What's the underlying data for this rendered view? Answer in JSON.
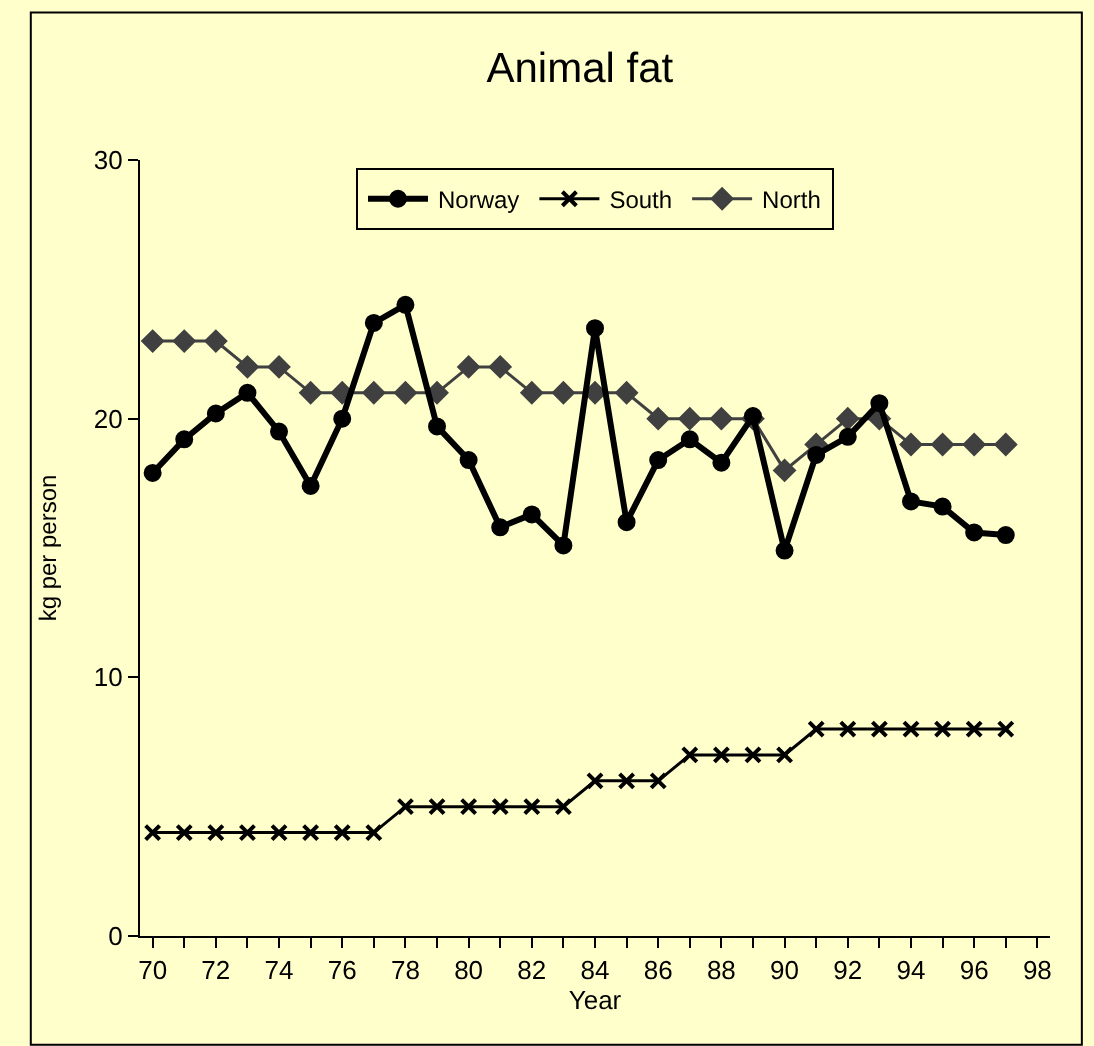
{
  "chart_data": {
    "type": "line",
    "title": "Animal fat",
    "xlabel": "Year",
    "ylabel": "kg per person",
    "x": [
      70,
      71,
      72,
      73,
      74,
      75,
      76,
      77,
      78,
      79,
      80,
      81,
      82,
      83,
      84,
      85,
      86,
      87,
      88,
      89,
      90,
      91,
      92,
      93,
      94,
      95,
      96,
      97
    ],
    "series": [
      {
        "name": "Norway",
        "color": "#000000",
        "marker": "circle",
        "values": [
          17.9,
          19.2,
          20.2,
          21.0,
          19.5,
          17.4,
          20.0,
          23.7,
          24.4,
          19.7,
          18.4,
          15.8,
          16.3,
          15.1,
          23.5,
          16.0,
          18.4,
          19.2,
          18.3,
          20.1,
          14.9,
          18.6,
          19.3,
          20.6,
          16.8,
          16.6,
          15.6,
          15.5
        ]
      },
      {
        "name": "South",
        "color": "#000000",
        "marker": "cross",
        "values": [
          4,
          4,
          4,
          4,
          4,
          4,
          4,
          4,
          5,
          5,
          5,
          5,
          5,
          5,
          6,
          6,
          6,
          7,
          7,
          7,
          7,
          8,
          8,
          8,
          8,
          8,
          8,
          8
        ]
      },
      {
        "name": "North",
        "color": "#404040",
        "marker": "diamond",
        "values": [
          23,
          23,
          23,
          22,
          22,
          21,
          21,
          21,
          21,
          21,
          22,
          22,
          21,
          21,
          21,
          21,
          20,
          20,
          20,
          20,
          18,
          19,
          20,
          20,
          19,
          19,
          19,
          19
        ]
      }
    ],
    "xlim": [
      69.6,
      98.4
    ],
    "xticks": [
      70,
      {
        "value": 71,
        "label": null
      },
      72,
      {
        "value": 73,
        "label": null
      },
      74,
      {
        "value": 75,
        "label": null
      },
      76,
      {
        "value": 77,
        "label": null
      },
      78,
      {
        "value": 79,
        "label": null
      },
      80,
      {
        "value": 81,
        "label": null
      },
      82,
      {
        "value": 83,
        "label": null
      },
      84,
      {
        "value": 85,
        "label": null
      },
      86,
      {
        "value": 87,
        "label": null
      },
      88,
      {
        "value": 89,
        "label": null
      },
      90,
      {
        "value": 91,
        "label": null
      },
      92,
      {
        "value": 93,
        "label": null
      },
      94,
      {
        "value": 95,
        "label": null
      },
      96,
      {
        "value": 97,
        "label": null
      },
      98
    ],
    "ylim": [
      0,
      30
    ],
    "yticks": [
      0,
      10,
      20,
      30
    ],
    "grid": false,
    "legend": "top",
    "line_style": "solid"
  }
}
